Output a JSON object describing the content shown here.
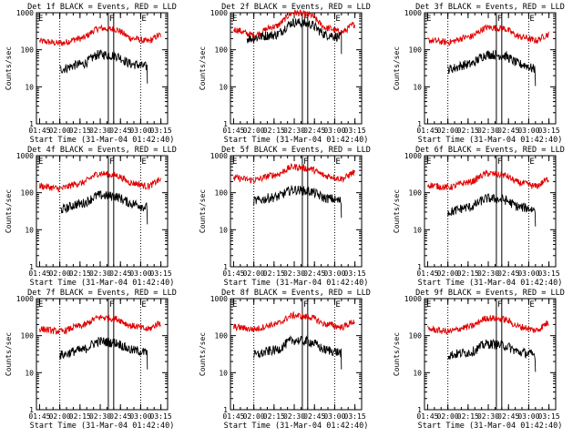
{
  "colors": {
    "events": "#000000",
    "lld": "#e00000",
    "markers": "#000000"
  },
  "shared": {
    "xlabel": "Start Time (31-Mar-04 01:42:40)",
    "ylabel": "Counts/sec",
    "x_tick_labels": [
      "01:45",
      "02:00",
      "02:15",
      "02:30",
      "02:45",
      "03:00",
      "03:15"
    ],
    "y_tick_labels": [
      "1",
      "10",
      "100",
      "1000"
    ],
    "marker_labels": {
      "left": "E",
      "center": "F",
      "right": "E"
    }
  },
  "chart_data": [
    {
      "type": "line",
      "title": "Det 1f BLACK = Events, RED = LLD",
      "xlim": [
        "01:42:40",
        "03:20"
      ],
      "ylim": [
        1,
        1000
      ],
      "yscale": "log",
      "series": [
        {
          "name": "Events",
          "x": [
            "02:00",
            "02:15",
            "02:30",
            "02:40",
            "02:55",
            "03:05"
          ],
          "values": [
            30,
            40,
            75,
            70,
            40,
            35
          ]
        },
        {
          "name": "LLD",
          "x": [
            "01:45",
            "02:00",
            "02:15",
            "02:30",
            "02:40",
            "02:55",
            "03:05",
            "03:15"
          ],
          "values": [
            170,
            150,
            200,
            380,
            360,
            200,
            170,
            250
          ]
        }
      ],
      "vlines_dotted": [
        "02:00",
        "03:00"
      ],
      "vlines_solid": [
        "02:36",
        "02:40"
      ]
    },
    {
      "type": "line",
      "title": "Det 2f BLACK = Events, RED = LLD",
      "xlim": [
        "01:42:40",
        "03:20"
      ],
      "ylim": [
        1,
        1000
      ],
      "yscale": "log",
      "series": [
        {
          "name": "Events",
          "x": [
            "01:55",
            "02:15",
            "02:30",
            "02:40",
            "02:55",
            "03:05"
          ],
          "values": [
            200,
            250,
            550,
            500,
            250,
            220
          ]
        },
        {
          "name": "LLD",
          "x": [
            "01:45",
            "02:00",
            "02:15",
            "02:30",
            "02:40",
            "02:55",
            "03:05",
            "03:15"
          ],
          "values": [
            350,
            250,
            420,
            1000,
            900,
            380,
            300,
            480
          ]
        }
      ],
      "vlines_dotted": [
        "02:00",
        "03:00"
      ],
      "vlines_solid": [
        "02:36",
        "02:40"
      ]
    },
    {
      "type": "line",
      "title": "Det 3f BLACK = Events, RED = LLD",
      "xlim": [
        "01:42:40",
        "03:20"
      ],
      "ylim": [
        1,
        1000
      ],
      "yscale": "log",
      "series": [
        {
          "name": "Events",
          "x": [
            "02:00",
            "02:15",
            "02:30",
            "02:40",
            "02:55",
            "03:05"
          ],
          "values": [
            30,
            40,
            75,
            70,
            40,
            30
          ]
        },
        {
          "name": "LLD",
          "x": [
            "01:45",
            "02:00",
            "02:15",
            "02:30",
            "02:40",
            "02:55",
            "03:05",
            "03:15"
          ],
          "values": [
            180,
            160,
            220,
            400,
            380,
            220,
            180,
            260
          ]
        }
      ],
      "vlines_dotted": [
        "02:00",
        "03:00"
      ],
      "vlines_solid": [
        "02:36",
        "02:40"
      ]
    },
    {
      "type": "line",
      "title": "Det 4f BLACK = Events, RED = LLD",
      "xlim": [
        "01:42:40",
        "03:20"
      ],
      "ylim": [
        1,
        1000
      ],
      "yscale": "log",
      "series": [
        {
          "name": "Events",
          "x": [
            "02:00",
            "02:15",
            "02:30",
            "02:40",
            "02:55",
            "03:05"
          ],
          "values": [
            35,
            50,
            85,
            80,
            50,
            40
          ]
        },
        {
          "name": "LLD",
          "x": [
            "01:45",
            "02:00",
            "02:15",
            "02:30",
            "02:40",
            "02:55",
            "03:05",
            "03:15"
          ],
          "values": [
            150,
            130,
            180,
            330,
            300,
            180,
            150,
            220
          ]
        }
      ],
      "vlines_dotted": [
        "02:00",
        "03:00"
      ],
      "vlines_solid": [
        "02:36",
        "02:40"
      ]
    },
    {
      "type": "line",
      "title": "Det 5f BLACK = Events, RED = LLD",
      "xlim": [
        "01:42:40",
        "03:20"
      ],
      "ylim": [
        1,
        1000
      ],
      "yscale": "log",
      "series": [
        {
          "name": "Events",
          "x": [
            "02:00",
            "02:15",
            "02:30",
            "02:40",
            "02:55",
            "03:05"
          ],
          "values": [
            60,
            75,
            120,
            110,
            70,
            60
          ]
        },
        {
          "name": "LLD",
          "x": [
            "01:45",
            "02:00",
            "02:15",
            "02:30",
            "02:40",
            "02:55",
            "03:05",
            "03:15"
          ],
          "values": [
            250,
            220,
            300,
            500,
            450,
            280,
            240,
            350
          ]
        }
      ],
      "vlines_dotted": [
        "02:00",
        "03:00"
      ],
      "vlines_solid": [
        "02:36",
        "02:40"
      ]
    },
    {
      "type": "line",
      "title": "Det 6f BLACK = Events, RED = LLD",
      "xlim": [
        "01:42:40",
        "03:20"
      ],
      "ylim": [
        1,
        1000
      ],
      "yscale": "log",
      "series": [
        {
          "name": "Events",
          "x": [
            "02:00",
            "02:15",
            "02:30",
            "02:40",
            "02:55",
            "03:05"
          ],
          "values": [
            30,
            40,
            70,
            65,
            40,
            35
          ]
        },
        {
          "name": "LLD",
          "x": [
            "01:45",
            "02:00",
            "02:15",
            "02:30",
            "02:40",
            "02:55",
            "03:05",
            "03:15"
          ],
          "values": [
            160,
            140,
            190,
            330,
            300,
            180,
            150,
            230
          ]
        }
      ],
      "vlines_dotted": [
        "02:00",
        "03:00"
      ],
      "vlines_solid": [
        "02:36",
        "02:40"
      ]
    },
    {
      "type": "line",
      "title": "Det 7f BLACK = Events, RED = LLD",
      "xlim": [
        "01:42:40",
        "03:20"
      ],
      "ylim": [
        1,
        1000
      ],
      "yscale": "log",
      "series": [
        {
          "name": "Events",
          "x": [
            "02:00",
            "02:15",
            "02:30",
            "02:40",
            "02:55",
            "03:05"
          ],
          "values": [
            30,
            40,
            70,
            65,
            40,
            35
          ]
        },
        {
          "name": "LLD",
          "x": [
            "01:45",
            "02:00",
            "02:15",
            "02:30",
            "02:40",
            "02:55",
            "03:05",
            "03:15"
          ],
          "values": [
            150,
            130,
            180,
            310,
            290,
            180,
            150,
            220
          ]
        }
      ],
      "vlines_dotted": [
        "02:00",
        "03:00"
      ],
      "vlines_solid": [
        "02:36",
        "02:40"
      ]
    },
    {
      "type": "line",
      "title": "Det 8f BLACK = Events, RED = LLD",
      "xlim": [
        "01:42:40",
        "03:20"
      ],
      "ylim": [
        1,
        1000
      ],
      "yscale": "log",
      "series": [
        {
          "name": "Events",
          "x": [
            "02:00",
            "02:15",
            "02:30",
            "02:40",
            "02:55",
            "03:05"
          ],
          "values": [
            30,
            40,
            75,
            70,
            40,
            35
          ]
        },
        {
          "name": "LLD",
          "x": [
            "01:45",
            "02:00",
            "02:15",
            "02:30",
            "02:40",
            "02:55",
            "03:05",
            "03:15"
          ],
          "values": [
            170,
            150,
            200,
            350,
            320,
            200,
            170,
            240
          ]
        }
      ],
      "vlines_dotted": [
        "02:00",
        "03:00"
      ],
      "vlines_solid": [
        "02:36",
        "02:40"
      ]
    },
    {
      "type": "line",
      "title": "Det 9f BLACK = Events, RED = LLD",
      "xlim": [
        "01:42:40",
        "03:20"
      ],
      "ylim": [
        1,
        1000
      ],
      "yscale": "log",
      "series": [
        {
          "name": "Events",
          "x": [
            "02:00",
            "02:15",
            "02:30",
            "02:40",
            "02:55",
            "03:05"
          ],
          "values": [
            30,
            35,
            60,
            55,
            35,
            30
          ]
        },
        {
          "name": "LLD",
          "x": [
            "01:45",
            "02:00",
            "02:15",
            "02:30",
            "02:40",
            "02:55",
            "03:05",
            "03:15"
          ],
          "values": [
            150,
            130,
            170,
            300,
            280,
            170,
            140,
            220
          ]
        }
      ],
      "vlines_dotted": [
        "02:00",
        "03:00"
      ],
      "vlines_solid": [
        "02:36",
        "02:40"
      ]
    }
  ]
}
